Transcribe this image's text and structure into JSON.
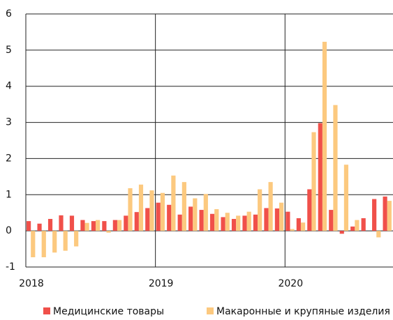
{
  "chart_data": {
    "type": "bar",
    "categories": [
      "2018",
      null,
      null,
      null,
      null,
      null,
      null,
      null,
      null,
      null,
      null,
      null,
      "2019",
      null,
      null,
      null,
      null,
      null,
      null,
      null,
      null,
      null,
      null,
      null,
      "2020",
      null,
      null,
      null,
      null,
      null,
      null,
      null,
      null,
      null
    ],
    "series": [
      {
        "name": "Медицинские товары",
        "color": "#f0504a",
        "values": [
          0.27,
          0.2,
          0.33,
          0.43,
          0.42,
          0.3,
          0.27,
          0.27,
          0.3,
          0.42,
          0.52,
          0.63,
          0.78,
          0.72,
          0.45,
          0.67,
          0.58,
          0.47,
          0.38,
          0.33,
          0.42,
          0.45,
          0.63,
          0.62,
          0.53,
          0.35,
          1.15,
          2.98,
          0.58,
          -0.08,
          0.12,
          0.35,
          0.88,
          0.95
        ]
      },
      {
        "name": "Макаронные и крупяные изделия",
        "color": "#fcc97f",
        "values": [
          -0.73,
          -0.73,
          -0.6,
          -0.55,
          -0.43,
          0.22,
          0.3,
          -0.05,
          0.3,
          1.18,
          1.28,
          1.12,
          1.05,
          1.53,
          1.35,
          0.9,
          1.02,
          0.6,
          0.5,
          0.42,
          0.53,
          1.15,
          1.35,
          0.78,
          0.05,
          0.23,
          2.73,
          5.23,
          3.48,
          1.83,
          0.3,
          0,
          -0.18,
          0.83
        ]
      }
    ],
    "ylim": [
      -1,
      6
    ],
    "yticks": [
      -1,
      0,
      1,
      2,
      3,
      4,
      5,
      6
    ],
    "grid": true
  }
}
